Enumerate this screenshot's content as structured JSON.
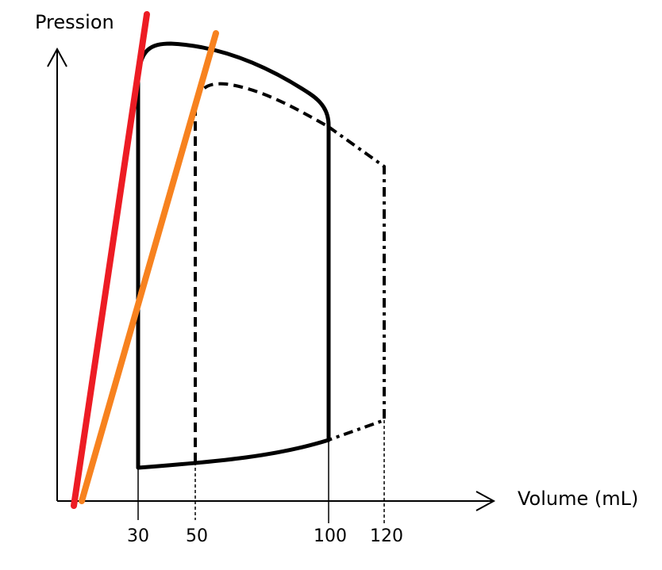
{
  "axes": {
    "y_label": "Pression",
    "x_label": "Volume (mL)",
    "x_ticks": [
      "30",
      "50",
      "100",
      "120"
    ]
  },
  "colors": {
    "elastance_steep": "#ed1c24",
    "elastance_shallow": "#f7821f",
    "loop": "#000000"
  }
}
